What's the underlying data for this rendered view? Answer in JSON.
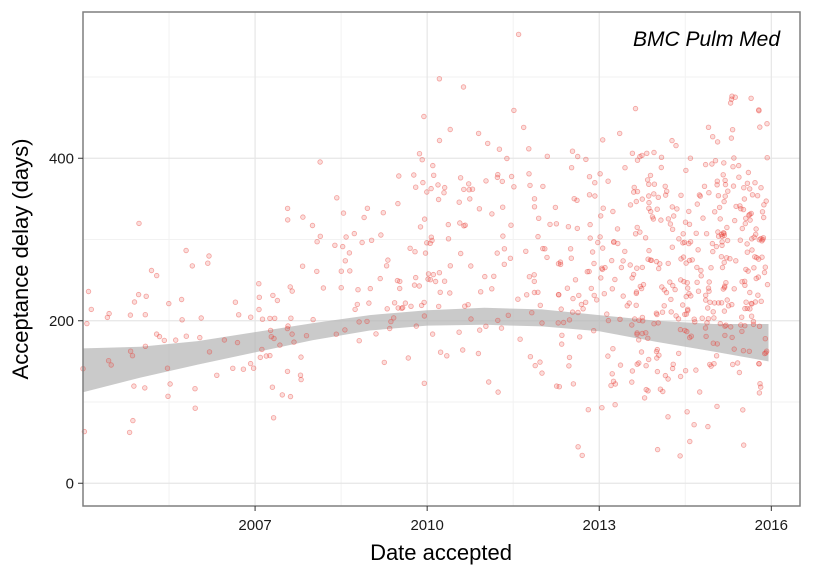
{
  "chart_data": {
    "type": "scatter",
    "title": "BMC Pulm Med",
    "xlabel": "Date accepted",
    "ylabel": "Acceptance delay (days)",
    "xlim": [
      2004.0,
      2016.5
    ],
    "ylim": [
      -28,
      580
    ],
    "x_ticks": [
      2007,
      2010,
      2013,
      2016
    ],
    "x_minor_ticks": [
      2005.5,
      2008.5,
      2011.5,
      2014.5
    ],
    "y_ticks": [
      0,
      200,
      400
    ],
    "y_minor_ticks": [
      100,
      300,
      500
    ],
    "grid": true,
    "legend": "none",
    "point_color": "#e8403a",
    "smooth_band_color": "#b3b3b3",
    "smooth": {
      "x": [
        2004.0,
        2005.0,
        2006.0,
        2007.0,
        2008.0,
        2009.0,
        2010.0,
        2011.0,
        2012.0,
        2013.0,
        2014.0,
        2015.0,
        2015.95
      ],
      "fit": [
        138,
        148,
        160,
        173,
        186,
        197,
        203,
        205,
        203,
        197,
        187,
        178,
        170
      ],
      "lower": [
        112,
        130,
        146,
        161,
        176,
        188,
        194,
        195,
        193,
        187,
        174,
        162,
        150
      ],
      "upper": [
        166,
        168,
        175,
        186,
        197,
        207,
        213,
        216,
        214,
        207,
        200,
        196,
        196
      ]
    },
    "clusters": [
      {
        "x": [
          2004.0,
          2005.8
        ],
        "y": [
          20,
          370
        ],
        "n": 35,
        "seed": 3
      },
      {
        "x": [
          2005.8,
          2007.8
        ],
        "y": [
          20,
          360
        ],
        "n": 50,
        "seed": 7
      },
      {
        "x": [
          2007.8,
          2009.8
        ],
        "y": [
          40,
          470
        ],
        "n": 65,
        "seed": 11
      },
      {
        "x": [
          2009.8,
          2011.8
        ],
        "y": [
          20,
          570
        ],
        "n": 105,
        "seed": 17
      },
      {
        "x": [
          2011.8,
          2013.6
        ],
        "y": [
          0,
          490
        ],
        "n": 125,
        "seed": 23
      },
      {
        "x": [
          2013.6,
          2015.0
        ],
        "y": [
          0,
          530
        ],
        "n": 190,
        "seed": 29
      },
      {
        "x": [
          2015.0,
          2015.95
        ],
        "y": [
          20,
          550
        ],
        "n": 160,
        "seed": 31
      }
    ]
  }
}
